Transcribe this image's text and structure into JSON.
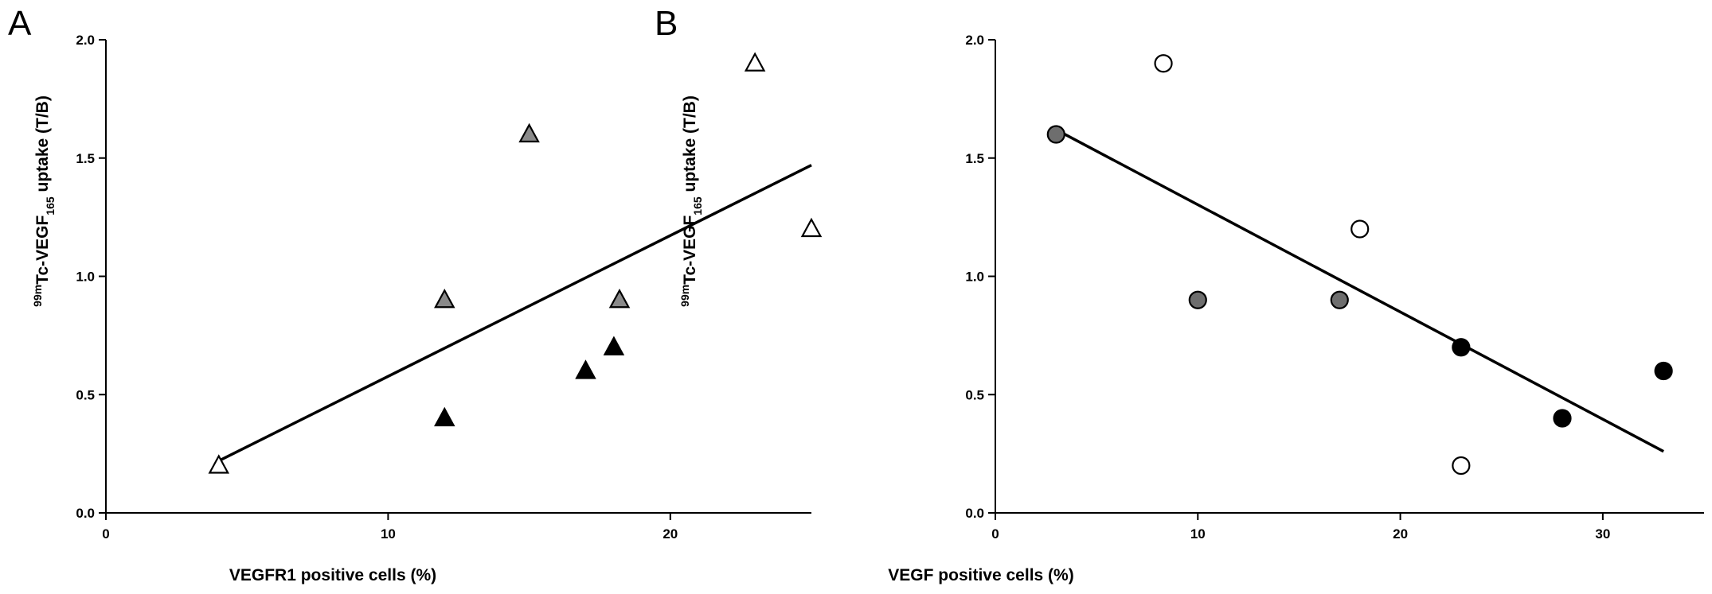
{
  "chart_data": [
    {
      "type": "scatter",
      "panel_label": "A",
      "xlabel": "VEGFR1 positive cells (%)",
      "ylabel": {
        "prefix": "99m",
        "main": "Tc-VEGF",
        "sub": "165",
        "suffix": " uptake (T/B)"
      },
      "xlim": [
        0,
        25
      ],
      "ylim": [
        0,
        2.0
      ],
      "x_ticks": [
        0,
        10,
        20
      ],
      "x_tick_labels": [
        "0",
        "10",
        "20"
      ],
      "y_ticks": [
        0,
        0.5,
        1.0,
        1.5,
        2.0
      ],
      "y_tick_labels": [
        "0.0",
        "0.5",
        "1.0",
        "1.5",
        "2.0"
      ],
      "marker": "triangle",
      "grid": false,
      "points": [
        {
          "x": 4,
          "y": 0.2,
          "fill": "#ffffff"
        },
        {
          "x": 23,
          "y": 1.9,
          "fill": "#ffffff"
        },
        {
          "x": 25,
          "y": 1.2,
          "fill": "#ffffff"
        },
        {
          "x": 12,
          "y": 0.9,
          "fill": "#8a8a8a"
        },
        {
          "x": 15,
          "y": 1.6,
          "fill": "#8a8a8a"
        },
        {
          "x": 18.2,
          "y": 0.9,
          "fill": "#8a8a8a"
        },
        {
          "x": 12,
          "y": 0.4,
          "fill": "#000000"
        },
        {
          "x": 17,
          "y": 0.6,
          "fill": "#000000"
        },
        {
          "x": 18,
          "y": 0.7,
          "fill": "#000000"
        }
      ],
      "fit_line": {
        "x1": 4,
        "y1": 0.22,
        "x2": 25,
        "y2": 1.47
      }
    },
    {
      "type": "scatter",
      "panel_label": "B",
      "xlabel": "VEGF positive cells (%)",
      "ylabel": {
        "prefix": "99m",
        "main": "Tc-VEGF",
        "sub": "165",
        "suffix": " uptake (T/B)"
      },
      "xlim": [
        0,
        35
      ],
      "ylim": [
        0,
        2.0
      ],
      "x_ticks": [
        0,
        10,
        20,
        30
      ],
      "x_tick_labels": [
        "0",
        "10",
        "20",
        "30"
      ],
      "y_ticks": [
        0,
        0.5,
        1.0,
        1.5,
        2.0
      ],
      "y_tick_labels": [
        "0.0",
        "0.5",
        "1.0",
        "1.5",
        "2.0"
      ],
      "marker": "circle",
      "grid": false,
      "points": [
        {
          "x": 8.3,
          "y": 1.9,
          "fill": "#ffffff"
        },
        {
          "x": 18,
          "y": 1.2,
          "fill": "#ffffff"
        },
        {
          "x": 23,
          "y": 0.2,
          "fill": "#ffffff"
        },
        {
          "x": 3,
          "y": 1.6,
          "fill": "#6e6e6e"
        },
        {
          "x": 10,
          "y": 0.9,
          "fill": "#6e6e6e"
        },
        {
          "x": 17,
          "y": 0.9,
          "fill": "#6e6e6e"
        },
        {
          "x": 23,
          "y": 0.7,
          "fill": "#000000"
        },
        {
          "x": 28,
          "y": 0.4,
          "fill": "#000000"
        },
        {
          "x": 33,
          "y": 0.6,
          "fill": "#000000"
        }
      ],
      "fit_line": {
        "x1": 3,
        "y1": 1.62,
        "x2": 33,
        "y2": 0.26
      }
    }
  ]
}
